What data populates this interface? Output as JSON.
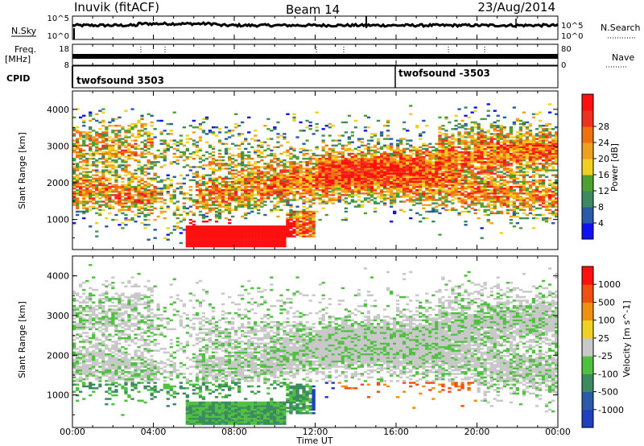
{
  "header": {
    "station": "Inuvik (fitACF)",
    "beam": "Beam 14",
    "date": "23/Aug/2014"
  },
  "noise_panel": {
    "left_label": "N.Sky",
    "right_label": "N.Search",
    "ticks_left": [
      "10^5",
      "10^0"
    ],
    "ticks_right": [
      "10^5",
      "10^0"
    ]
  },
  "freq_panel": {
    "left_label_1": "Freq.",
    "left_label_2": "[MHz]",
    "right_label": "Nave",
    "ticks_left": [
      "18",
      "8"
    ],
    "ticks_right": [
      "80",
      "0"
    ]
  },
  "cpid_panel": {
    "label": "CPID",
    "segments": [
      {
        "label": "twofsound 3503",
        "start_hour": 0
      },
      {
        "label": "twofsound -3503",
        "start_hour": 16
      }
    ]
  },
  "x_axis": {
    "label": "Time UT",
    "ticks": [
      "00:00",
      "04:00",
      "08:00",
      "12:00",
      "16:00",
      "20:00",
      "00:00"
    ]
  },
  "chart_data": [
    {
      "type": "heatmap",
      "title": "",
      "xlabel": "Time UT",
      "ylabel": "Slant Range [km]",
      "xlim": [
        0,
        24
      ],
      "ylim": [
        180,
        4500
      ],
      "yticks": [
        "1000",
        "2000",
        "3000",
        "4000"
      ],
      "colorbar": {
        "label": "Power [dB]",
        "ticks": [
          "4",
          "8",
          "12",
          "16",
          "20",
          "24",
          "28"
        ],
        "colors": [
          "#1010f0",
          "#2a5aa8",
          "#3c8a60",
          "#4ea030",
          "#f0d020",
          "#f0a020",
          "#f07010",
          "#f03020",
          "#ff1010"
        ]
      }
    },
    {
      "type": "heatmap",
      "title": "",
      "xlabel": "Time UT",
      "ylabel": "Slant Range [km]",
      "xlim": [
        0,
        24
      ],
      "ylim": [
        180,
        4500
      ],
      "yticks": [
        "1000",
        "2000",
        "3000",
        "4000"
      ],
      "colorbar": {
        "label": "Velocity  [m s^-1]",
        "ticks": [
          "1000",
          "500",
          "100",
          "25",
          "-25",
          "-100",
          "-500",
          "-1000"
        ],
        "colors": [
          "#2040c0",
          "#2a5aa8",
          "#3c8a60",
          "#50c040",
          "#c8c8c8",
          "#f0d020",
          "#f09010",
          "#f05010",
          "#ff1010"
        ]
      }
    }
  ]
}
